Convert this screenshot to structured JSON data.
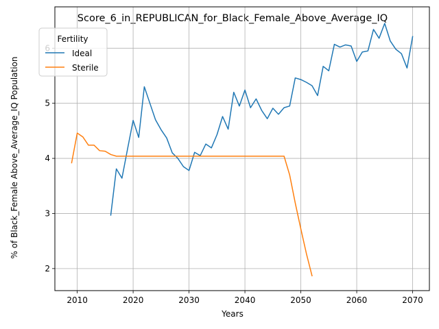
{
  "chart_data": {
    "type": "line",
    "title": "Score_6_in_REPUBLICAN_for_Black_Female_Above_Average_IQ",
    "xlabel": "Years",
    "ylabel": "% of Black_Female Above_Average_IQ Population",
    "xlim": [
      2006,
      2073
    ],
    "ylim": [
      1.6,
      6.75
    ],
    "xticks": [
      2010,
      2020,
      2030,
      2040,
      2050,
      2060,
      2070
    ],
    "yticks": [
      2,
      3,
      4,
      5,
      6
    ],
    "grid": true,
    "legend": {
      "title": "Fertility",
      "placement": "top-left"
    },
    "series": [
      {
        "name": "Ideal",
        "color": "#1f77b4",
        "x": [
          2016,
          2017,
          2018,
          2019,
          2020,
          2021,
          2022,
          2023,
          2024,
          2025,
          2026,
          2027,
          2028,
          2029,
          2030,
          2031,
          2032,
          2033,
          2034,
          2035,
          2036,
          2037,
          2038,
          2039,
          2040,
          2041,
          2042,
          2043,
          2044,
          2045,
          2046,
          2047,
          2048,
          2049,
          2050,
          2051,
          2052,
          2053,
          2054,
          2055,
          2056,
          2057,
          2058,
          2059,
          2060,
          2061,
          2062,
          2063,
          2064,
          2065,
          2066,
          2067,
          2068,
          2069,
          2070
        ],
        "values": [
          2.97,
          3.81,
          3.64,
          4.17,
          4.69,
          4.38,
          5.3,
          5.0,
          4.7,
          4.52,
          4.37,
          4.1,
          4.0,
          3.85,
          3.78,
          4.11,
          4.05,
          4.26,
          4.19,
          4.43,
          4.76,
          4.53,
          5.2,
          4.95,
          5.24,
          4.92,
          5.08,
          4.87,
          4.72,
          4.91,
          4.8,
          4.92,
          4.95,
          5.46,
          5.43,
          5.38,
          5.32,
          5.14,
          5.67,
          5.59,
          6.07,
          6.02,
          6.06,
          6.04,
          5.76,
          5.93,
          5.95,
          6.34,
          6.18,
          6.45,
          6.13,
          5.98,
          5.9,
          5.64,
          6.21
        ]
      },
      {
        "name": "Sterile",
        "color": "#ff7f0e",
        "x": [
          2009,
          2010,
          2011,
          2012,
          2013,
          2014,
          2015,
          2016,
          2017,
          2018,
          2019,
          2020,
          2021,
          2022,
          2023,
          2024,
          2025,
          2026,
          2027,
          2028,
          2029,
          2030,
          2031,
          2032,
          2033,
          2034,
          2035,
          2036,
          2037,
          2038,
          2039,
          2040,
          2041,
          2042,
          2043,
          2044,
          2045,
          2046,
          2047,
          2048,
          2049,
          2050,
          2051,
          2052
        ],
        "values": [
          3.92,
          4.46,
          4.39,
          4.24,
          4.24,
          4.14,
          4.13,
          4.07,
          4.04,
          4.04,
          4.04,
          4.04,
          4.04,
          4.04,
          4.04,
          4.04,
          4.04,
          4.04,
          4.04,
          4.04,
          4.04,
          4.04,
          4.04,
          4.04,
          4.04,
          4.04,
          4.04,
          4.04,
          4.04,
          4.04,
          4.04,
          4.04,
          4.04,
          4.04,
          4.04,
          4.04,
          4.04,
          4.04,
          4.04,
          3.7,
          3.19,
          2.72,
          2.27,
          1.87
        ]
      }
    ]
  }
}
